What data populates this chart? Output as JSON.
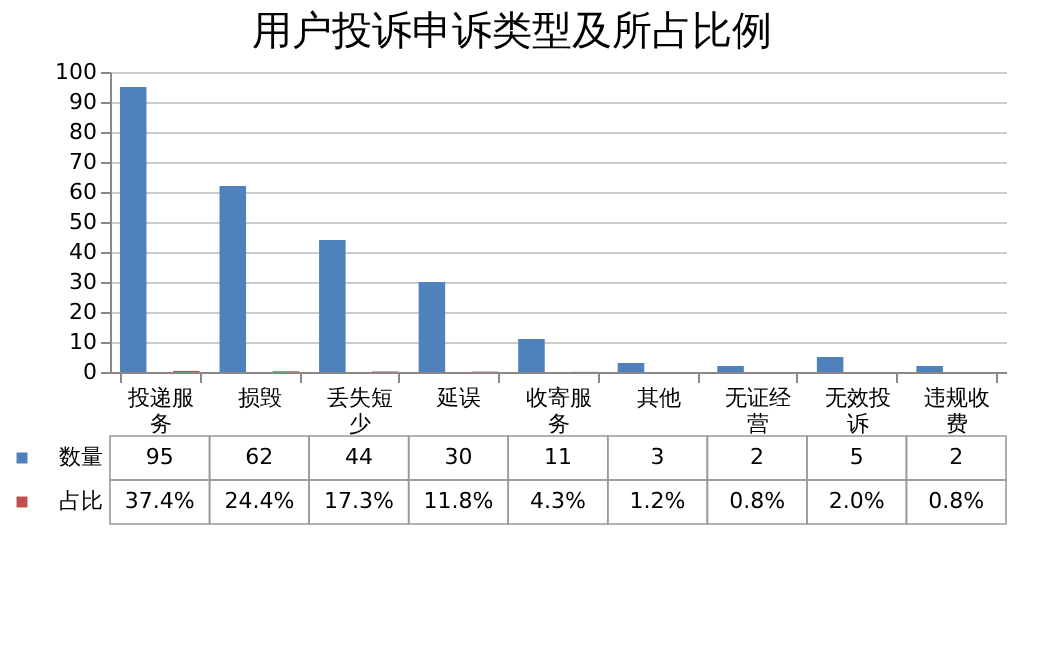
{
  "chart_data": {
    "type": "bar",
    "title": "用户投诉申诉类型及所占比例",
    "categories": [
      "投递服务",
      "损毁",
      "丢失短少",
      "延误",
      "收寄服务",
      "其他",
      "无证经营",
      "无效投诉",
      "违规收费"
    ],
    "series": [
      {
        "name": "数量",
        "color": "#4f81bd",
        "values": [
          95,
          62,
          44,
          30,
          11,
          3,
          2,
          5,
          2
        ]
      },
      {
        "name": "占比",
        "color": "#c0504d",
        "values": [
          0.374,
          0.244,
          0.173,
          0.118,
          0.043,
          0.012,
          0.008,
          0.02,
          0.008
        ],
        "value_labels": [
          "37.4%",
          "24.4%",
          "17.3%",
          "11.8%",
          "4.3%",
          "1.2%",
          "0.8%",
          "2.0%",
          "0.8%"
        ]
      }
    ],
    "ylim": [
      0,
      100
    ],
    "yticks": [
      0,
      10,
      20,
      30,
      40,
      50,
      60,
      70,
      80,
      90,
      100
    ],
    "grid": "y",
    "legend": "bottom left",
    "data_labels": true
  }
}
